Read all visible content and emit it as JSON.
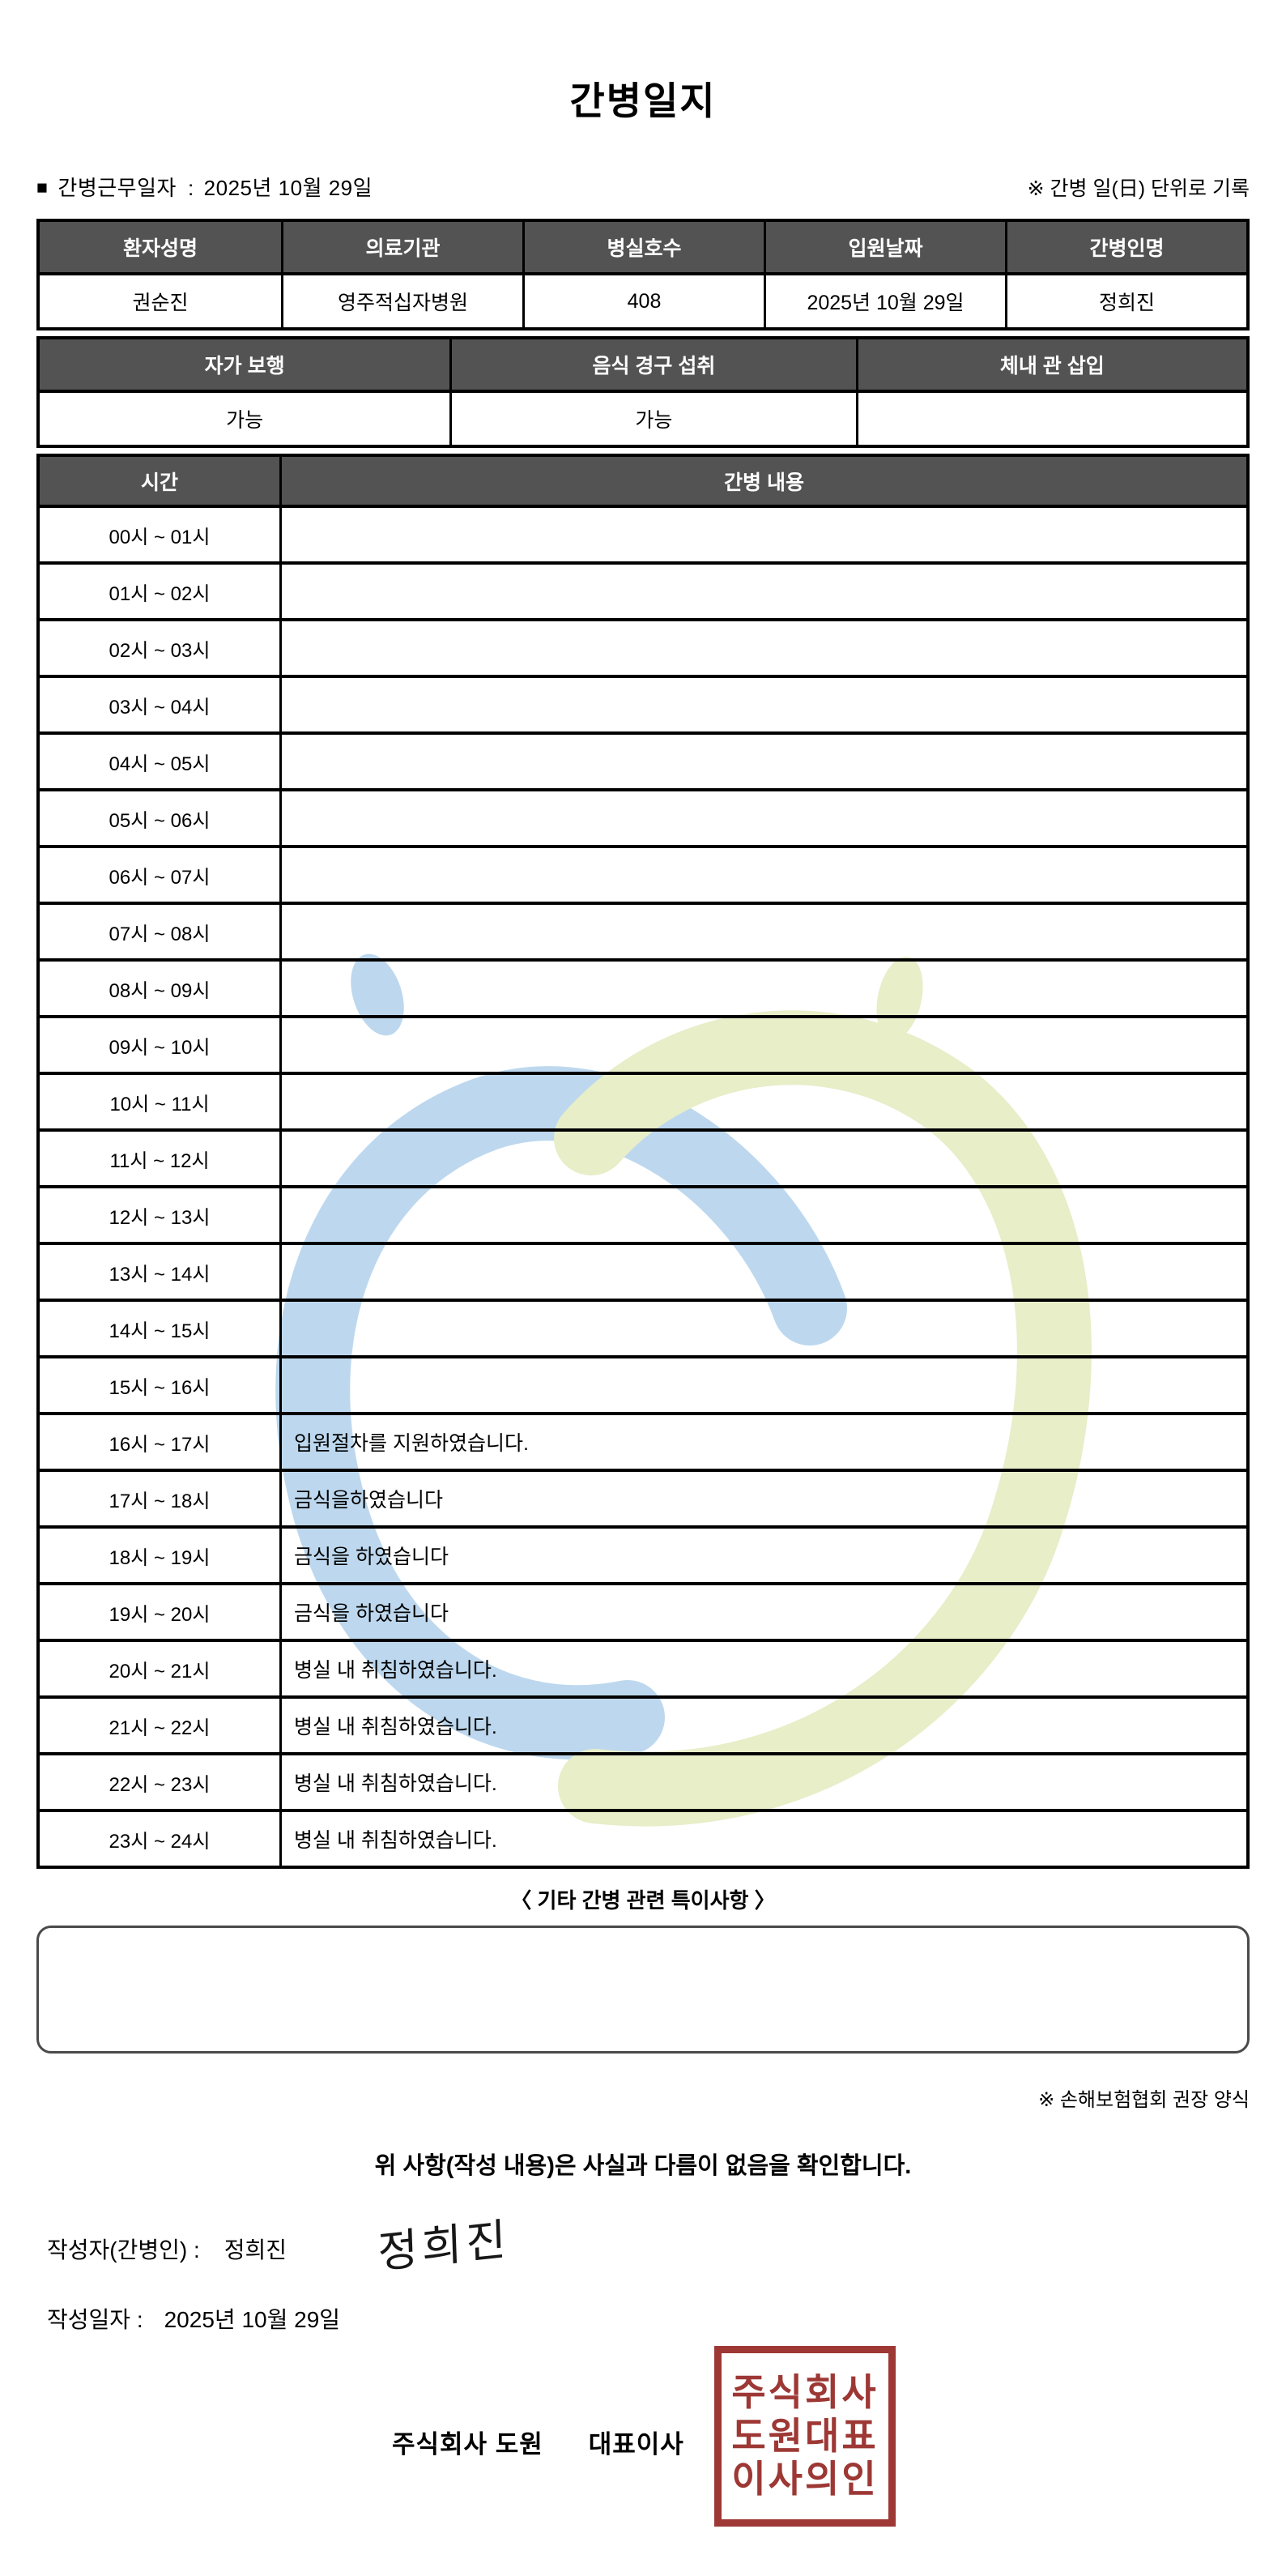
{
  "title": "간병일지",
  "meta": {
    "bullet": "■",
    "work_date_label": "간병근무일자",
    "separator": ":",
    "work_date": "2025년 10월 29일",
    "unit_note": "※ 간병 일(日) 단위로 기록"
  },
  "patient_table": {
    "headers": [
      "환자성명",
      "의료기관",
      "병실호수",
      "입원날짜",
      "간병인명"
    ],
    "values": [
      "권순진",
      "영주적십자병원",
      "408",
      "2025년 10월 29일",
      "정희진"
    ]
  },
  "status_table": {
    "headers": [
      "자가 보행",
      "음식 경구 섭취",
      "체내 관 삽입"
    ],
    "values": [
      "가능",
      "가능",
      ""
    ]
  },
  "care_log": {
    "time_header": "시간",
    "content_header": "간병 내용",
    "rows": [
      {
        "time": "00시 ~ 01시",
        "content": ""
      },
      {
        "time": "01시 ~ 02시",
        "content": ""
      },
      {
        "time": "02시 ~ 03시",
        "content": ""
      },
      {
        "time": "03시 ~ 04시",
        "content": ""
      },
      {
        "time": "04시 ~ 05시",
        "content": ""
      },
      {
        "time": "05시 ~ 06시",
        "content": ""
      },
      {
        "time": "06시 ~ 07시",
        "content": ""
      },
      {
        "time": "07시 ~ 08시",
        "content": ""
      },
      {
        "time": "08시 ~ 09시",
        "content": ""
      },
      {
        "time": "09시 ~ 10시",
        "content": ""
      },
      {
        "time": "10시 ~ 11시",
        "content": ""
      },
      {
        "time": "11시 ~ 12시",
        "content": ""
      },
      {
        "time": "12시 ~ 13시",
        "content": ""
      },
      {
        "time": "13시 ~ 14시",
        "content": ""
      },
      {
        "time": "14시 ~ 15시",
        "content": ""
      },
      {
        "time": "15시 ~ 16시",
        "content": ""
      },
      {
        "time": "16시 ~ 17시",
        "content": "입원절차를 지원하였습니다."
      },
      {
        "time": "17시 ~ 18시",
        "content": "금식을하였습니다"
      },
      {
        "time": "18시 ~ 19시",
        "content": "금식을 하였습니다"
      },
      {
        "time": "19시 ~ 20시",
        "content": "금식을 하였습니다"
      },
      {
        "time": "20시 ~ 21시",
        "content": "병실 내 취침하였습니다."
      },
      {
        "time": "21시 ~ 22시",
        "content": "병실 내 취침하였습니다."
      },
      {
        "time": "22시 ~ 23시",
        "content": "병실 내 취침하였습니다."
      },
      {
        "time": "23시 ~ 24시",
        "content": "병실 내 취침하였습니다."
      }
    ]
  },
  "notes": {
    "section_title": "〈 기타 간병 관련 특이사항 〉",
    "box_content": ""
  },
  "footer": {
    "form_note": "※ 손해보험협회 권장 양식",
    "confirmation": "위 사항(작성 내용)은 사실과 다름이 없음을 확인합니다.",
    "writer_label": "작성자(간병인) :",
    "writer_name": "정희진",
    "signature": "정희진",
    "date_label": "작성일자 :",
    "date_value": "2025년 10월 29일",
    "company_name": "주식회사 도원",
    "ceo_label": "대표이사",
    "stamp_lines": [
      "주식회사",
      "도원대표",
      "이사의인"
    ]
  },
  "colors": {
    "header_bg": "#535353",
    "stamp_red": "#9d3835",
    "watermark_blue": "#bdd8ee",
    "watermark_green": "#e7eec8"
  }
}
